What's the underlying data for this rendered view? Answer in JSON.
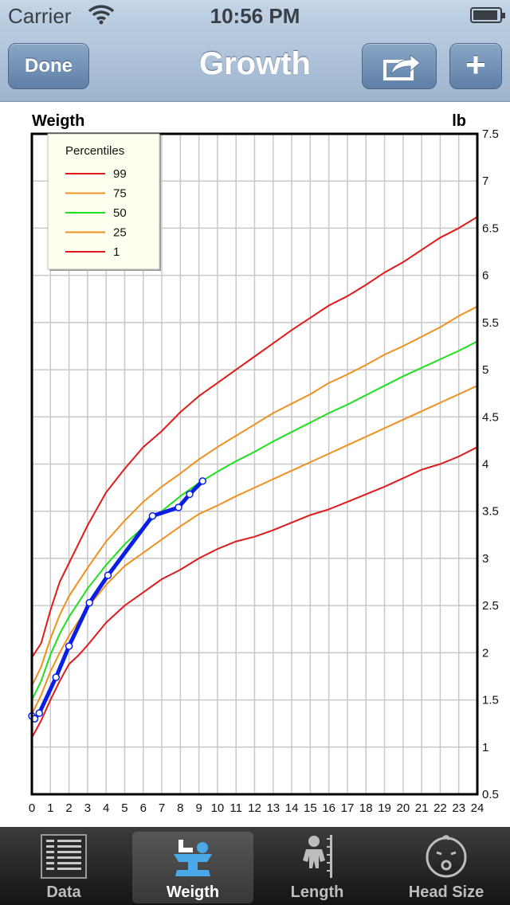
{
  "status_bar": {
    "carrier": "Carrier",
    "time": "10:56 PM"
  },
  "nav": {
    "title": "Growth",
    "done_label": "Done",
    "add_label": "+"
  },
  "tabs": [
    {
      "label": "Data",
      "icon": "data-list-icon",
      "active": false
    },
    {
      "label": "Weigth",
      "icon": "baby-scale-icon",
      "active": true
    },
    {
      "label": "Length",
      "icon": "baby-ruler-icon",
      "active": false
    },
    {
      "label": "Head Size",
      "icon": "baby-head-icon",
      "active": false
    }
  ],
  "colors": {
    "p99": "#e01b1b",
    "p75": "#f0901e",
    "p50": "#1ee01e",
    "p25": "#f0901e",
    "p1": "#e01b1b",
    "measurement": "#0a1ee6"
  },
  "chart_data": {
    "type": "line",
    "title": "Weigth",
    "ylabel": "lb",
    "xlim": [
      0,
      24
    ],
    "ylim": [
      0.5,
      7.5
    ],
    "xticks": [
      "0",
      "1",
      "2",
      "3",
      "4",
      "5",
      "6",
      "7",
      "8",
      "9",
      "10",
      "11",
      "12",
      "13",
      "14",
      "15",
      "16",
      "17",
      "18",
      "19",
      "20",
      "21",
      "22",
      "23",
      "24"
    ],
    "yticks": [
      "7.5",
      "7",
      "6.5",
      "6",
      "5.5",
      "5",
      "4.5",
      "4",
      "3.5",
      "3",
      "2.5",
      "2",
      "1.5",
      "1",
      "0.5"
    ],
    "grid": true,
    "legend": {
      "title": "Percentiles",
      "placement": "top-left"
    },
    "series": [
      {
        "name": "99",
        "x": [
          0,
          0.5,
          1,
          1.5,
          2,
          3,
          4,
          5,
          6,
          7,
          8,
          9,
          10,
          11,
          12,
          13,
          14,
          15,
          16,
          17,
          18,
          19,
          20,
          21,
          22,
          23,
          24
        ],
        "values": [
          1.95,
          2.1,
          2.45,
          2.75,
          2.95,
          3.35,
          3.7,
          3.95,
          4.18,
          4.35,
          4.55,
          4.72,
          4.86,
          5.0,
          5.14,
          5.28,
          5.42,
          5.55,
          5.68,
          5.78,
          5.9,
          6.03,
          6.14,
          6.27,
          6.4,
          6.5,
          6.62
        ]
      },
      {
        "name": "75",
        "x": [
          0,
          0.5,
          1,
          1.5,
          2,
          3,
          4,
          5,
          6,
          7,
          8,
          9,
          10,
          11,
          12,
          13,
          14,
          15,
          16,
          17,
          18,
          19,
          20,
          21,
          22,
          23,
          24
        ],
        "values": [
          1.65,
          1.85,
          2.15,
          2.4,
          2.6,
          2.9,
          3.18,
          3.4,
          3.6,
          3.76,
          3.9,
          4.05,
          4.18,
          4.3,
          4.42,
          4.54,
          4.64,
          4.74,
          4.86,
          4.95,
          5.05,
          5.16,
          5.25,
          5.35,
          5.45,
          5.57,
          5.67
        ]
      },
      {
        "name": "50",
        "x": [
          0,
          0.5,
          1,
          1.5,
          2,
          3,
          4,
          5,
          6,
          7,
          8,
          9,
          10,
          11,
          12,
          13,
          14,
          15,
          16,
          17,
          18,
          19,
          20,
          21,
          22,
          23,
          24
        ],
        "values": [
          1.5,
          1.7,
          1.98,
          2.2,
          2.38,
          2.68,
          2.93,
          3.15,
          3.33,
          3.5,
          3.66,
          3.8,
          3.92,
          4.03,
          4.13,
          4.24,
          4.34,
          4.44,
          4.54,
          4.63,
          4.73,
          4.83,
          4.93,
          5.02,
          5.11,
          5.2,
          5.3
        ]
      },
      {
        "name": "25",
        "x": [
          0,
          0.5,
          1,
          1.5,
          2,
          3,
          4,
          5,
          6,
          7,
          8,
          9,
          10,
          11,
          12,
          13,
          14,
          15,
          16,
          17,
          18,
          19,
          20,
          21,
          22,
          23,
          24
        ],
        "values": [
          1.35,
          1.55,
          1.8,
          2.0,
          2.18,
          2.48,
          2.72,
          2.92,
          3.06,
          3.2,
          3.34,
          3.47,
          3.56,
          3.66,
          3.75,
          3.84,
          3.93,
          4.02,
          4.11,
          4.2,
          4.29,
          4.38,
          4.47,
          4.56,
          4.65,
          4.74,
          4.83
        ]
      },
      {
        "name": "1",
        "x": [
          0,
          0.5,
          1,
          1.5,
          2,
          2.5,
          3,
          4,
          5,
          6,
          7,
          8,
          9,
          10,
          11,
          12,
          13,
          14,
          15,
          16,
          17,
          18,
          19,
          20,
          21,
          22,
          23,
          24
        ],
        "values": [
          1.1,
          1.28,
          1.5,
          1.7,
          1.88,
          1.97,
          2.08,
          2.32,
          2.5,
          2.64,
          2.78,
          2.88,
          3.0,
          3.1,
          3.18,
          3.23,
          3.3,
          3.38,
          3.46,
          3.52,
          3.6,
          3.68,
          3.76,
          3.85,
          3.94,
          4.0,
          4.08,
          4.18
        ]
      }
    ],
    "measurements": {
      "x": [
        0,
        0.15,
        0.4,
        1.3,
        2.0,
        3.1,
        4.1,
        6.5,
        7.9,
        8.5,
        9.2
      ],
      "values": [
        1.33,
        1.3,
        1.36,
        1.74,
        2.07,
        2.53,
        2.82,
        3.45,
        3.54,
        3.68,
        3.82
      ]
    }
  }
}
